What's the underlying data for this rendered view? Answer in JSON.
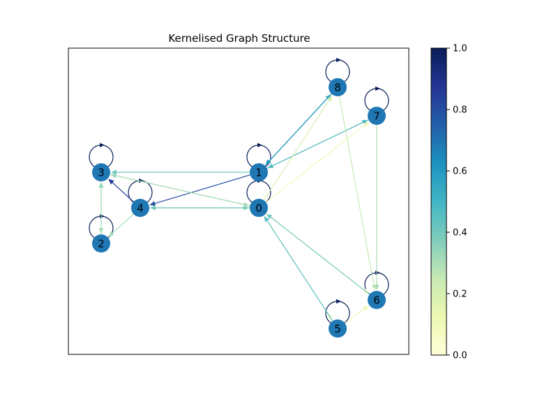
{
  "figure": {
    "title": "Kernelised Graph Structure"
  },
  "graph": {
    "node_color": "#1f77b4",
    "colormap": "YlGnBu",
    "nodes": [
      {
        "id": "0",
        "label": "0"
      },
      {
        "id": "1",
        "label": "1"
      },
      {
        "id": "2",
        "label": "2"
      },
      {
        "id": "3",
        "label": "3"
      },
      {
        "id": "4",
        "label": "4"
      },
      {
        "id": "5",
        "label": "5"
      },
      {
        "id": "6",
        "label": "6"
      },
      {
        "id": "7",
        "label": "7"
      },
      {
        "id": "8",
        "label": "8"
      }
    ],
    "edges": [
      {
        "source": "0",
        "target": "0",
        "weight": 1.0
      },
      {
        "source": "1",
        "target": "1",
        "weight": 1.0
      },
      {
        "source": "2",
        "target": "2",
        "weight": 1.0
      },
      {
        "source": "3",
        "target": "3",
        "weight": 1.0
      },
      {
        "source": "4",
        "target": "4",
        "weight": 1.0
      },
      {
        "source": "5",
        "target": "5",
        "weight": 1.0
      },
      {
        "source": "6",
        "target": "6",
        "weight": 1.0
      },
      {
        "source": "7",
        "target": "7",
        "weight": 1.0
      },
      {
        "source": "8",
        "target": "8",
        "weight": 1.0
      },
      {
        "source": "1",
        "target": "3",
        "weight": 0.4
      },
      {
        "source": "1",
        "target": "4",
        "weight": 0.8
      },
      {
        "source": "1",
        "target": "8",
        "weight": 0.55
      },
      {
        "source": "1",
        "target": "7",
        "weight": 0.5
      },
      {
        "source": "8",
        "target": "1",
        "weight": 0.6
      },
      {
        "source": "7",
        "target": "1",
        "weight": 0.45
      },
      {
        "source": "0",
        "target": "3",
        "weight": 0.35
      },
      {
        "source": "3",
        "target": "0",
        "weight": 0.3
      },
      {
        "source": "4",
        "target": "0",
        "weight": 0.35
      },
      {
        "source": "0",
        "target": "4",
        "weight": 0.4
      },
      {
        "source": "4",
        "target": "3",
        "weight": 0.85
      },
      {
        "source": "2",
        "target": "3",
        "weight": 0.35
      },
      {
        "source": "3",
        "target": "2",
        "weight": 0.3
      },
      {
        "source": "4",
        "target": "2",
        "weight": 0.3
      },
      {
        "source": "0",
        "target": "8",
        "weight": 0.2
      },
      {
        "source": "0",
        "target": "7",
        "weight": 0.1
      },
      {
        "source": "0",
        "target": "6",
        "weight": 0.05
      },
      {
        "source": "0",
        "target": "5",
        "weight": 0.05
      },
      {
        "source": "5",
        "target": "0",
        "weight": 0.45
      },
      {
        "source": "6",
        "target": "0",
        "weight": 0.4
      },
      {
        "source": "8",
        "target": "6",
        "weight": 0.25
      },
      {
        "source": "7",
        "target": "6",
        "weight": 0.3
      },
      {
        "source": "5",
        "target": "6",
        "weight": 0.1
      }
    ]
  },
  "colorbar": {
    "min": 0.0,
    "max": 1.0,
    "ticks": [
      "0.0",
      "0.2",
      "0.4",
      "0.6",
      "0.8",
      "1.0"
    ],
    "stops": [
      "#ffffd9",
      "#edf8b1",
      "#c7e9b4",
      "#7fcdbb",
      "#41b6c4",
      "#1d91c0",
      "#225ea8",
      "#253494",
      "#081d58"
    ]
  }
}
